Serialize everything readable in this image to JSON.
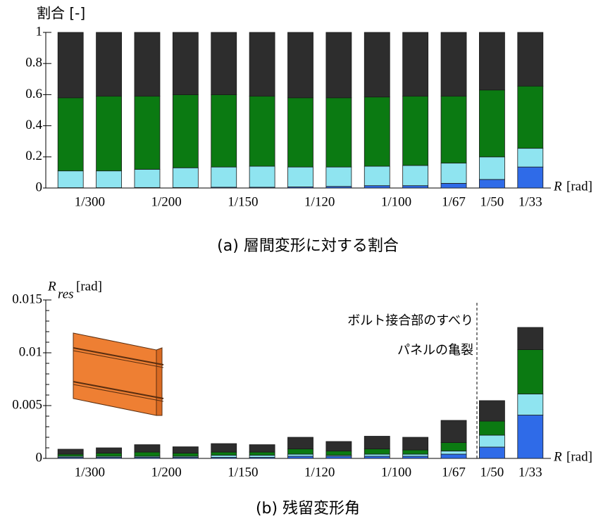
{
  "chart_data": [
    {
      "type": "stacked_bar",
      "caption": "(a) 層間変形に対する割合",
      "ylabel": "割合 [-]",
      "xlabel_symbol": "R",
      "xlabel_unit": "[rad]",
      "categories": [
        "1/300",
        null,
        "1/200",
        null,
        "1/150",
        null,
        "1/120",
        null,
        "1/100",
        null,
        "1/67",
        "1/50",
        "1/33"
      ],
      "ylim": [
        0,
        1
      ],
      "yticks": [
        0,
        0.2,
        0.4,
        0.6,
        0.8,
        1
      ],
      "series": [
        {
          "color": "#2f6be8",
          "values": [
            0.002,
            0.002,
            0.003,
            0.003,
            0.005,
            0.005,
            0.007,
            0.01,
            0.015,
            0.015,
            0.03,
            0.055,
            0.135
          ]
        },
        {
          "color": "#8fe4f0",
          "values": [
            0.108,
            0.108,
            0.117,
            0.127,
            0.13,
            0.135,
            0.128,
            0.125,
            0.125,
            0.13,
            0.13,
            0.145,
            0.12
          ]
        },
        {
          "color": "#0b7a12",
          "values": [
            0.47,
            0.48,
            0.47,
            0.47,
            0.465,
            0.45,
            0.445,
            0.445,
            0.445,
            0.445,
            0.43,
            0.43,
            0.4
          ]
        },
        {
          "color": "#2d2d2d",
          "values": [
            0.42,
            0.41,
            0.41,
            0.4,
            0.4,
            0.41,
            0.42,
            0.42,
            0.415,
            0.41,
            0.41,
            0.37,
            0.345
          ]
        }
      ]
    },
    {
      "type": "stacked_bar",
      "caption": "(b) 残留変形角",
      "ylabel_symbol": "R",
      "ylabel_subscript": "res",
      "ylabel_unit": "[rad]",
      "xlabel_symbol": "R",
      "xlabel_unit": "[rad]",
      "annotations": [
        "ボルト接合部のすべり",
        "パネルの亀裂"
      ],
      "categories": [
        "1/300",
        null,
        "1/200",
        null,
        "1/150",
        null,
        "1/120",
        null,
        "1/100",
        null,
        "1/67",
        "1/50",
        "1/33"
      ],
      "ylim": [
        0,
        0.015
      ],
      "yticks": [
        0,
        0.005,
        0.01,
        0.015
      ],
      "yminorticks": [
        0.001,
        0.002,
        0.003,
        0.004,
        0.006,
        0.007,
        0.008,
        0.009,
        0.011,
        0.012,
        0.013,
        0.014
      ],
      "series": [
        {
          "color": "#2f6be8",
          "values": [
            0.0001,
            0.0001,
            0.0001,
            0.0001,
            0.0001,
            0.0001,
            0.0002,
            0.0002,
            0.0002,
            0.0002,
            0.0004,
            0.00107,
            0.0041
          ]
        },
        {
          "color": "#8fe4f0",
          "values": [
            0.0001,
            0.0001,
            0.0001,
            0.0001,
            0.0002,
            0.0002,
            0.0002,
            0.0001,
            0.0002,
            0.0002,
            0.0003,
            0.00113,
            0.002
          ]
        },
        {
          "color": "#0b7a12",
          "values": [
            0.0002,
            0.0003,
            0.0004,
            0.0003,
            0.0003,
            0.0003,
            0.0005,
            0.0004,
            0.0005,
            0.0004,
            0.0008,
            0.00133,
            0.0042
          ]
        },
        {
          "color": "#2d2d2d",
          "values": [
            0.00047,
            0.0005,
            0.0007,
            0.0006,
            0.0008,
            0.0007,
            0.0011,
            0.0009,
            0.0012,
            0.0012,
            0.0021,
            0.00194,
            0.0021
          ]
        }
      ]
    }
  ]
}
